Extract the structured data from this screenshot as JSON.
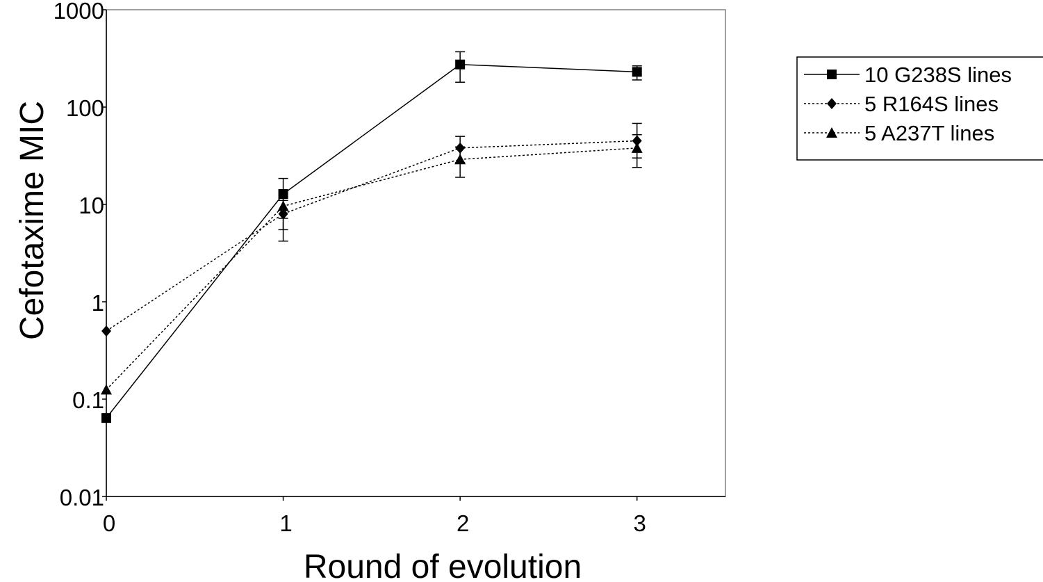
{
  "chart_data": {
    "type": "line",
    "title": "",
    "xlabel": "Round of evolution",
    "ylabel": "Cefotaxime MIC",
    "xlim": [
      0,
      3.5
    ],
    "ylim": [
      0.01,
      1000
    ],
    "yscale": "log",
    "x_ticks": [
      0,
      1,
      2,
      3
    ],
    "x_tick_labels": [
      "0",
      "1",
      "2",
      "3"
    ],
    "y_ticks": [
      0.01,
      0.1,
      1,
      10,
      100,
      1000
    ],
    "y_tick_labels": [
      "0.01",
      "0.1",
      "1",
      "10",
      "100",
      "1000"
    ],
    "grid": false,
    "legend_position": "right",
    "series": [
      {
        "name": "10 G238S lines",
        "marker": "square",
        "line_style": "solid",
        "color": "#000000",
        "x": [
          0,
          1,
          2,
          3
        ],
        "y": [
          0.064,
          12.8,
          274,
          230
        ],
        "err_low": [
          null,
          4.2,
          180,
          190
        ],
        "err_high": [
          null,
          18.5,
          370,
          265
        ]
      },
      {
        "name": "5 R164S lines",
        "marker": "diamond",
        "line_style": "dotted",
        "color": "#000000",
        "x": [
          0,
          1,
          2,
          3
        ],
        "y": [
          0.5,
          8.0,
          38,
          45
        ],
        "err_low": [
          null,
          5.5,
          27,
          30
        ],
        "err_high": [
          null,
          11,
          50,
          68
        ]
      },
      {
        "name": "5 A237T lines",
        "marker": "triangle",
        "line_style": "dotted",
        "color": "#000000",
        "x": [
          0,
          1,
          2,
          3
        ],
        "y": [
          0.125,
          9.6,
          29,
          38
        ],
        "err_low": [
          null,
          7.2,
          19,
          24
        ],
        "err_high": [
          null,
          12,
          39,
          52
        ]
      }
    ]
  }
}
